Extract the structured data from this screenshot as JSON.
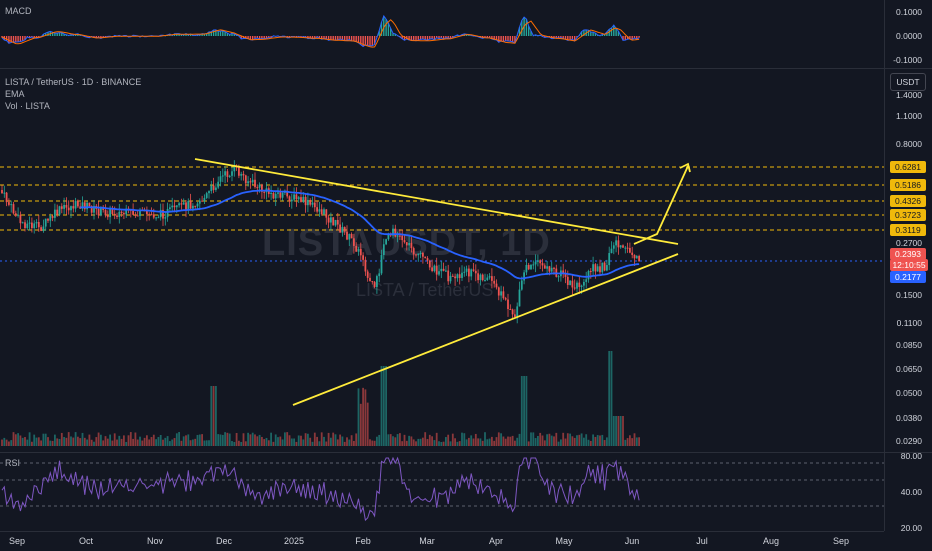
{
  "header": {
    "symbol_line": "LISTA / TetherUS · 1D · BINANCE",
    "ema_label": "EMA",
    "vol_label": "Vol · LISTA"
  },
  "macd": {
    "label": "MACD",
    "ticks": [
      "0.1000",
      "0.0000",
      "-0.1000"
    ]
  },
  "rsi": {
    "label": "RSI",
    "ticks": [
      "80.00",
      "40.00",
      "20.00"
    ]
  },
  "price_scale": {
    "unit_button": "USDT",
    "ticks": [
      "1.4000",
      "1.1000",
      "0.8000",
      "0.2700",
      "0.1500",
      "0.1100",
      "0.0850",
      "0.0650",
      "0.0500",
      "0.0380",
      "0.0290"
    ],
    "levels": [
      "0.6281",
      "0.5186",
      "0.4326",
      "0.3723",
      "0.3119"
    ],
    "current_price": "0.2393",
    "countdown": "12:10:55",
    "ema_value": "0.2177"
  },
  "time_axis": [
    "Sep",
    "Oct",
    "Nov",
    "Dec",
    "2025",
    "Feb",
    "Mar",
    "Apr",
    "May",
    "Jun",
    "Jul",
    "Aug",
    "Sep"
  ],
  "watermark": {
    "big": "LISTAUSDT, 1D",
    "small": "LISTA / TetherUS"
  },
  "colors": {
    "background": "#131722",
    "up": "#26a69a",
    "down": "#ef5350",
    "ema": "#2962ff",
    "trendline": "#ffeb3b",
    "level_line": "#f0b90b",
    "rsi_line": "#7e57c2",
    "macd_line": "#2962ff",
    "signal_line": "#ff6d00"
  }
}
